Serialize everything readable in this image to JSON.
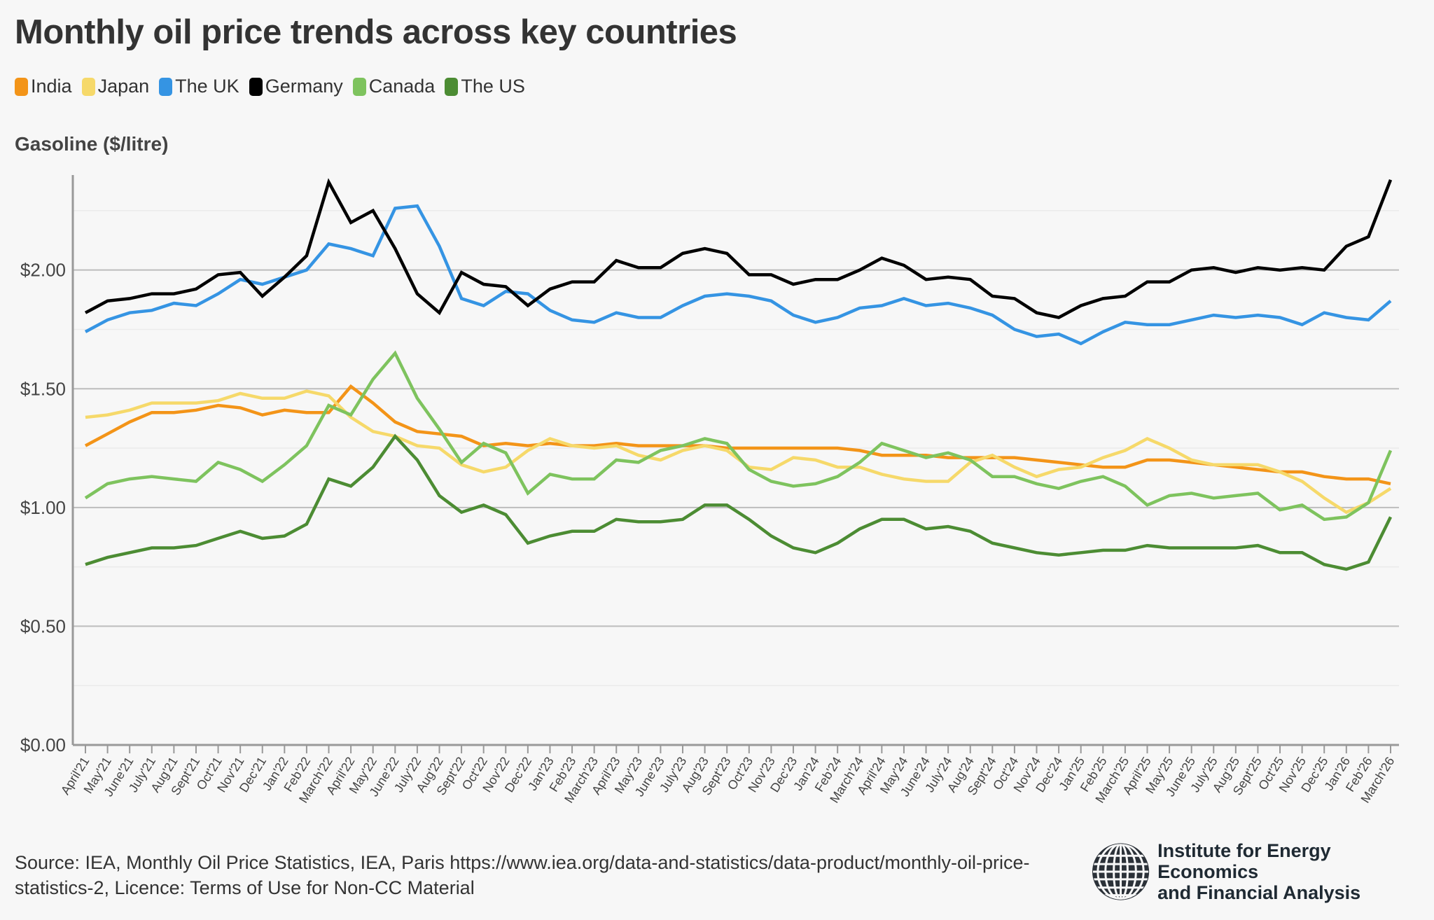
{
  "title": "Monthly oil price trends across key countries",
  "ylabel": "Gasoline ($/litre)",
  "legend": [
    {
      "name": "India",
      "color": "#f39418"
    },
    {
      "name": "Japan",
      "color": "#f6d96a"
    },
    {
      "name": "The UK",
      "color": "#3594e3"
    },
    {
      "name": "Germany",
      "color": "#000000"
    },
    {
      "name": "Canada",
      "color": "#7ec35e"
    },
    {
      "name": "The US",
      "color": "#4c8c33"
    }
  ],
  "source_text": "Source: IEA, Monthly Oil Price Statistics, IEA, Paris https://www.iea.org/data-and-statistics/data-product/monthly-oil-price-statistics-2, Licence: Terms of Use for Non-CC Material",
  "logo": {
    "line1": "Institute for Energy Economics",
    "line2": "and Financial Analysis",
    "icon": "globe-icon"
  },
  "chart_data": {
    "type": "line",
    "title": "Monthly oil price trends across key countries",
    "xlabel": "",
    "ylabel": "Gasoline ($/litre)",
    "ylim": [
      0,
      2.4
    ],
    "yticks": [
      0,
      0.5,
      1.0,
      1.5,
      2.0
    ],
    "ytick_labels": [
      "$0.00",
      "$0.50",
      "$1.00",
      "$1.50",
      "$2.00"
    ],
    "grid": true,
    "legend_position": "top-left",
    "x": [
      "April'21",
      "May'21",
      "June'21",
      "July'21",
      "Aug'21",
      "Sept'21",
      "Oct'21",
      "Nov'21",
      "Dec'21",
      "Jan'22",
      "Feb'22",
      "March'22",
      "April'22",
      "May'22",
      "June'22",
      "July'22",
      "Aug'22",
      "Sept'22",
      "Oct'22",
      "Nov'22",
      "Dec'22",
      "Jan'23",
      "Feb'23",
      "March'23",
      "April'23",
      "May'23",
      "June'23",
      "July'23",
      "Aug'23",
      "Sept'23",
      "Oct'23",
      "Nov'23",
      "Dec'23",
      "Jan'24",
      "Feb'24",
      "March'24",
      "April'24",
      "May'24",
      "June'24",
      "July'24",
      "Aug'24",
      "Sept'24",
      "Oct'24",
      "Nov'24",
      "Dec'24",
      "Jan'25",
      "Feb'25",
      "March'25",
      "April'25",
      "May'25",
      "June'25",
      "July'25",
      "Aug'25",
      "Sept'25",
      "Oct'25",
      "Nov'25",
      "Dec'25",
      "Jan'26",
      "Feb'26",
      "March'26"
    ],
    "series": [
      {
        "name": "India",
        "color": "#f39418",
        "values": [
          1.26,
          1.31,
          1.36,
          1.4,
          1.4,
          1.41,
          1.43,
          1.42,
          1.39,
          1.41,
          1.4,
          1.4,
          1.51,
          1.44,
          1.36,
          1.32,
          1.31,
          1.3,
          1.26,
          1.27,
          1.26,
          1.27,
          1.26,
          1.26,
          1.27,
          1.26,
          1.26,
          1.26,
          1.26,
          1.25,
          1.25,
          1.25,
          1.25,
          1.25,
          1.25,
          1.24,
          1.22,
          1.22,
          1.22,
          1.21,
          1.21,
          1.21,
          1.21,
          1.2,
          1.19,
          1.18,
          1.17,
          1.17,
          1.2,
          1.2,
          1.19,
          1.18,
          1.17,
          1.16,
          1.15,
          1.15,
          1.13,
          1.12,
          1.12,
          1.1
        ]
      },
      {
        "name": "Japan",
        "color": "#f6d96a",
        "values": [
          1.38,
          1.39,
          1.41,
          1.44,
          1.44,
          1.44,
          1.45,
          1.48,
          1.46,
          1.46,
          1.49,
          1.47,
          1.38,
          1.32,
          1.3,
          1.26,
          1.25,
          1.18,
          1.15,
          1.17,
          1.24,
          1.29,
          1.26,
          1.25,
          1.26,
          1.22,
          1.2,
          1.24,
          1.26,
          1.24,
          1.17,
          1.16,
          1.21,
          1.2,
          1.17,
          1.17,
          1.14,
          1.12,
          1.11,
          1.11,
          1.19,
          1.22,
          1.17,
          1.13,
          1.16,
          1.17,
          1.21,
          1.24,
          1.29,
          1.25,
          1.2,
          1.18,
          1.18,
          1.18,
          1.15,
          1.11,
          1.04,
          0.98,
          1.02,
          1.08
        ]
      },
      {
        "name": "The UK",
        "color": "#3594e3",
        "values": [
          1.74,
          1.79,
          1.82,
          1.83,
          1.86,
          1.85,
          1.9,
          1.96,
          1.94,
          1.97,
          2.0,
          2.11,
          2.09,
          2.06,
          2.26,
          2.27,
          2.1,
          1.88,
          1.85,
          1.91,
          1.9,
          1.83,
          1.79,
          1.78,
          1.82,
          1.8,
          1.8,
          1.85,
          1.89,
          1.9,
          1.89,
          1.87,
          1.81,
          1.78,
          1.8,
          1.84,
          1.85,
          1.88,
          1.85,
          1.86,
          1.84,
          1.81,
          1.75,
          1.72,
          1.73,
          1.69,
          1.74,
          1.78,
          1.77,
          1.77,
          1.79,
          1.81,
          1.8,
          1.81,
          1.8,
          1.77,
          1.82,
          1.8,
          1.79,
          1.87
        ]
      },
      {
        "name": "Germany",
        "color": "#000000",
        "values": [
          1.82,
          1.87,
          1.88,
          1.9,
          1.9,
          1.92,
          1.98,
          1.99,
          1.89,
          1.97,
          2.06,
          2.37,
          2.2,
          2.25,
          2.09,
          1.9,
          1.82,
          1.99,
          1.94,
          1.93,
          1.85,
          1.92,
          1.95,
          1.95,
          2.04,
          2.01,
          2.01,
          2.07,
          2.09,
          2.07,
          1.98,
          1.98,
          1.94,
          1.96,
          1.96,
          2.0,
          2.05,
          2.02,
          1.96,
          1.97,
          1.96,
          1.89,
          1.88,
          1.82,
          1.8,
          1.85,
          1.88,
          1.89,
          1.95,
          1.95,
          2.0,
          2.01,
          1.99,
          2.01,
          2.0,
          2.01,
          2.0,
          2.1,
          2.14,
          2.38
        ]
      },
      {
        "name": "Canada",
        "color": "#7ec35e",
        "values": [
          1.04,
          1.1,
          1.12,
          1.13,
          1.12,
          1.11,
          1.19,
          1.16,
          1.11,
          1.18,
          1.26,
          1.43,
          1.39,
          1.54,
          1.65,
          1.46,
          1.33,
          1.19,
          1.27,
          1.23,
          1.06,
          1.14,
          1.12,
          1.12,
          1.2,
          1.19,
          1.24,
          1.26,
          1.29,
          1.27,
          1.16,
          1.11,
          1.09,
          1.1,
          1.13,
          1.19,
          1.27,
          1.24,
          1.21,
          1.23,
          1.2,
          1.13,
          1.13,
          1.1,
          1.08,
          1.11,
          1.13,
          1.09,
          1.01,
          1.05,
          1.06,
          1.04,
          1.05,
          1.06,
          0.99,
          1.01,
          0.95,
          0.96,
          1.02,
          1.24
        ]
      },
      {
        "name": "The US",
        "color": "#4c8c33",
        "values": [
          0.76,
          0.79,
          0.81,
          0.83,
          0.83,
          0.84,
          0.87,
          0.9,
          0.87,
          0.88,
          0.93,
          1.12,
          1.09,
          1.17,
          1.3,
          1.2,
          1.05,
          0.98,
          1.01,
          0.97,
          0.85,
          0.88,
          0.9,
          0.9,
          0.95,
          0.94,
          0.94,
          0.95,
          1.01,
          1.01,
          0.95,
          0.88,
          0.83,
          0.81,
          0.85,
          0.91,
          0.95,
          0.95,
          0.91,
          0.92,
          0.9,
          0.85,
          0.83,
          0.81,
          0.8,
          0.81,
          0.82,
          0.82,
          0.84,
          0.83,
          0.83,
          0.83,
          0.83,
          0.84,
          0.81,
          0.81,
          0.76,
          0.74,
          0.77,
          0.96
        ]
      }
    ]
  }
}
